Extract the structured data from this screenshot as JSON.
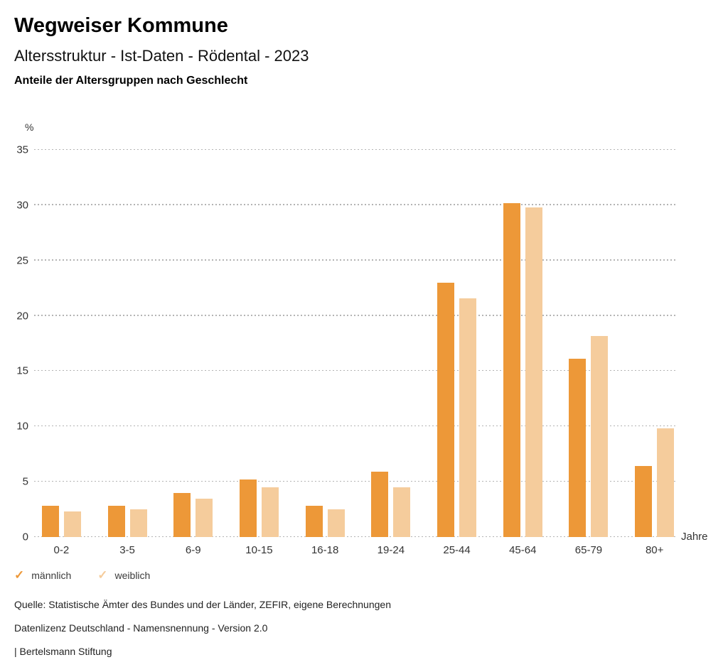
{
  "header": {
    "title": "Wegweiser Kommune",
    "subtitle": "Altersstruktur - Ist-Daten - Rödental - 2023",
    "description": "Anteile der Altersgruppen nach Geschlecht"
  },
  "chart_data": {
    "type": "bar",
    "title": "Anteile der Altersgruppen nach Geschlecht",
    "unit_label": "%",
    "xlabel": "Jahre",
    "categories": [
      "0-2",
      "3-5",
      "6-9",
      "10-15",
      "16-18",
      "19-24",
      "25-44",
      "45-64",
      "65-79",
      "80+"
    ],
    "series": [
      {
        "name": "männlich",
        "color": "#ED9838",
        "values": [
          2.8,
          2.8,
          4.0,
          5.2,
          2.8,
          5.9,
          23.0,
          30.2,
          16.1,
          6.4
        ]
      },
      {
        "name": "weiblich",
        "color": "#F5CC9C",
        "values": [
          2.3,
          2.5,
          3.5,
          4.5,
          2.5,
          4.5,
          21.6,
          29.8,
          18.2,
          9.8
        ]
      }
    ],
    "ylim": [
      0,
      35
    ],
    "yticks": [
      0,
      5,
      10,
      15,
      20,
      25,
      30,
      35
    ],
    "grid": "dotted horizontal",
    "legend_position": "bottom-left"
  },
  "legend": {
    "items": [
      {
        "label": "männlich",
        "icon": "check-icon",
        "color": "#ED9838"
      },
      {
        "label": "weiblich",
        "icon": "check-icon",
        "color": "#F5CC9C"
      }
    ]
  },
  "footer": {
    "source": "Quelle: Statistische Ämter des Bundes und der Länder, ZEFIR, eigene Berechnungen",
    "license": "Datenlizenz Deutschland - Namensnennung - Version 2.0",
    "attribution": "| Bertelsmann Stiftung"
  }
}
